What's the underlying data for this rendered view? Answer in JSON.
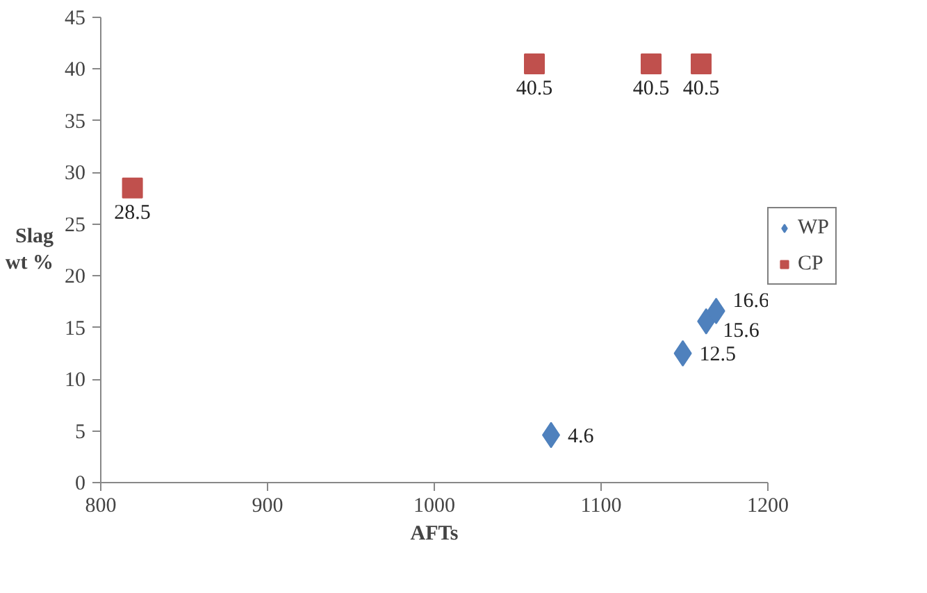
{
  "chart_data": {
    "type": "scatter",
    "xlabel": "AFTs",
    "ylabel": "Slag\nwt %",
    "xlim": [
      800,
      1200
    ],
    "xticks": [
      800,
      900,
      1000,
      1100,
      1200
    ],
    "ylim": [
      0,
      45
    ],
    "yticks": [
      0,
      5,
      10,
      15,
      20,
      25,
      30,
      35,
      40,
      45
    ],
    "grid": false,
    "legend": "right",
    "data_labels": true,
    "series": [
      {
        "name": "WP",
        "color": "#4f81bd",
        "marker": "diamond",
        "x": [
          1070,
          1149,
          1163,
          1169
        ],
        "values": [
          4.6,
          12.5,
          15.6,
          16.6
        ]
      },
      {
        "name": "CP",
        "color": "#c0504d",
        "marker": "square",
        "x": [
          819,
          1060,
          1130,
          1160
        ],
        "values": [
          28.5,
          40.5,
          40.5,
          40.5
        ]
      }
    ]
  }
}
